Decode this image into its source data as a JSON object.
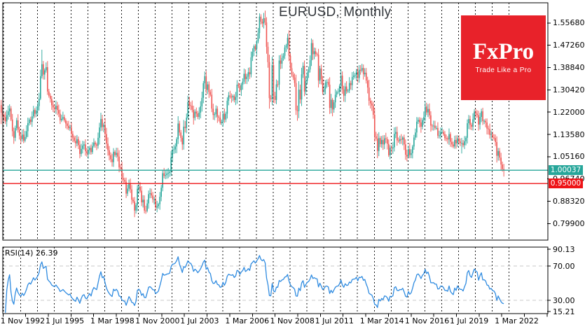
{
  "header": {
    "title": "EURUSD, Monthly"
  },
  "branding": {
    "name": "FxPro",
    "tagline": "Trade Like a Pro",
    "bg_color": "#e8222a",
    "text_color": "#ffffff"
  },
  "indicator": {
    "name": "RSI(14)",
    "value": "26.39",
    "line_color": "#2f8be0",
    "level_lines": [
      70,
      30
    ],
    "ticks": [
      {
        "text": "90.13",
        "value": 90.13
      },
      {
        "text": "70.00",
        "value": 70
      },
      {
        "text": "30.00",
        "value": 30
      },
      {
        "text": "15.21",
        "value": 15.21
      }
    ]
  },
  "price_axis": {
    "ticks": [
      {
        "text": "1.55680",
        "value": 1.5568
      },
      {
        "text": "1.47260",
        "value": 1.4726
      },
      {
        "text": "1.38840",
        "value": 1.3884
      },
      {
        "text": "1.30420",
        "value": 1.3042
      },
      {
        "text": "1.22000",
        "value": 1.22
      },
      {
        "text": "1.13580",
        "value": 1.1358
      },
      {
        "text": "1.05160",
        "value": 1.0516
      },
      {
        "text": "0.96740",
        "value": 0.9674
      },
      {
        "text": "0.88320",
        "value": 0.8832
      },
      {
        "text": "0.79900",
        "value": 0.799
      }
    ]
  },
  "time_axis": {
    "labels": [
      {
        "text": "1 Nov 1992",
        "month_index": 0
      },
      {
        "text": "1 Jul 1995",
        "month_index": 32
      },
      {
        "text": "1 Mar 1998",
        "month_index": 64
      },
      {
        "text": "1 Nov 2000",
        "month_index": 96
      },
      {
        "text": "1 Jul 2003",
        "month_index": 128
      },
      {
        "text": "1 Mar 2006",
        "month_index": 160
      },
      {
        "text": "1 Nov 2008",
        "month_index": 192
      },
      {
        "text": "1 Jul 2011",
        "month_index": 224
      },
      {
        "text": "1 Mar 2014",
        "month_index": 256
      },
      {
        "text": "1 Nov 2016",
        "month_index": 288
      },
      {
        "text": "1 Jul 2019",
        "month_index": 320
      },
      {
        "text": "1 Mar 2022",
        "month_index": 352
      }
    ]
  },
  "levels": {
    "current_price": {
      "label": "1.00037",
      "value": 1.00037,
      "color": "#26a69a"
    },
    "horizontal_line": {
      "label": "0.95000",
      "value": 0.95,
      "color": "#ee1417"
    }
  },
  "chart_data": [
    {
      "type": "candlestick",
      "title": "EURUSD, Monthly",
      "symbol": "EURUSD",
      "interval": "1M",
      "x_start": "1992-11",
      "x_end": "2022-09",
      "bull_color": "#26a69a",
      "bear_color": "#ef5350",
      "grid": "vertical-yearly-dashed",
      "y_visible_range": [
        0.736,
        1.633
      ],
      "first_open": 1.2465,
      "monthly_closes": [
        1.218,
        1.2095,
        1.201,
        1.185,
        1.209,
        1.223,
        1.234,
        1.192,
        1.148,
        1.123,
        1.16,
        1.189,
        1.154,
        1.131,
        1.118,
        1.135,
        1.112,
        1.126,
        1.148,
        1.178,
        1.192,
        1.183,
        1.204,
        1.228,
        1.214,
        1.226,
        1.243,
        1.271,
        1.356,
        1.401,
        1.362,
        1.378,
        1.39,
        1.298,
        1.282,
        1.27,
        1.246,
        1.238,
        1.231,
        1.244,
        1.228,
        1.214,
        1.189,
        1.195,
        1.201,
        1.189,
        1.177,
        1.168,
        1.159,
        1.163,
        1.138,
        1.124,
        1.111,
        1.102,
        1.118,
        1.095,
        1.062,
        1.081,
        1.094,
        1.098,
        1.072,
        1.064,
        1.076,
        1.085,
        1.069,
        1.092,
        1.105,
        1.098,
        1.093,
        1.123,
        1.162,
        1.194,
        1.164,
        1.172,
        1.137,
        1.101,
        1.076,
        1.057,
        1.042,
        1.031,
        1.07,
        1.058,
        1.066,
        1.052,
        1.011,
        1.007,
        0.971,
        0.964,
        0.957,
        0.912,
        0.931,
        0.952,
        0.928,
        0.889,
        0.883,
        0.848,
        0.868,
        0.93,
        0.938,
        0.923,
        0.879,
        0.889,
        0.848,
        0.847,
        0.875,
        0.91,
        0.914,
        0.905,
        0.89,
        0.89,
        0.859,
        0.865,
        0.872,
        0.9,
        0.934,
        0.989,
        0.979,
        0.982,
        0.988,
        0.99,
        0.995,
        1.049,
        1.077,
        1.079,
        1.09,
        1.118,
        1.177,
        1.143,
        1.123,
        1.098,
        1.165,
        1.16,
        1.199,
        1.258,
        1.246,
        1.244,
        1.229,
        1.198,
        1.222,
        1.215,
        1.202,
        1.218,
        1.242,
        1.274,
        1.329,
        1.356,
        1.304,
        1.325,
        1.296,
        1.286,
        1.233,
        1.209,
        1.212,
        1.233,
        1.203,
        1.199,
        1.179,
        1.183,
        1.214,
        1.192,
        1.214,
        1.263,
        1.283,
        1.278,
        1.276,
        1.281,
        1.266,
        1.277,
        1.324,
        1.32,
        1.303,
        1.323,
        1.335,
        1.365,
        1.345,
        1.354,
        1.371,
        1.363,
        1.427,
        1.448,
        1.469,
        1.459,
        1.487,
        1.519,
        1.581,
        1.562,
        1.555,
        1.575,
        1.559,
        1.467,
        1.409,
        1.273,
        1.269,
        1.398,
        1.281,
        1.266,
        1.325,
        1.324,
        1.415,
        1.403,
        1.425,
        1.433,
        1.464,
        1.472,
        1.501,
        1.433,
        1.386,
        1.362,
        1.351,
        1.33,
        1.227,
        1.224,
        1.305,
        1.268,
        1.363,
        1.395,
        1.298,
        1.338,
        1.369,
        1.381,
        1.416,
        1.481,
        1.439,
        1.45,
        1.44,
        1.437,
        1.339,
        1.385,
        1.344,
        1.296,
        1.308,
        1.332,
        1.334,
        1.324,
        1.236,
        1.267,
        1.23,
        1.257,
        1.286,
        1.296,
        1.298,
        1.319,
        1.358,
        1.306,
        1.282,
        1.317,
        1.299,
        1.301,
        1.33,
        1.322,
        1.353,
        1.358,
        1.359,
        1.374,
        1.349,
        1.38,
        1.377,
        1.387,
        1.363,
        1.369,
        1.339,
        1.313,
        1.263,
        1.253,
        1.245,
        1.21,
        1.129,
        1.12,
        1.073,
        1.122,
        1.099,
        1.115,
        1.098,
        1.121,
        1.118,
        1.1,
        1.057,
        1.086,
        1.083,
        1.087,
        1.138,
        1.145,
        1.113,
        1.111,
        1.118,
        1.116,
        1.124,
        1.098,
        1.059,
        1.052,
        1.08,
        1.058,
        1.065,
        1.09,
        1.124,
        1.143,
        1.184,
        1.191,
        1.181,
        1.165,
        1.19,
        1.201,
        1.241,
        1.219,
        1.232,
        1.208,
        1.169,
        1.168,
        1.169,
        1.16,
        1.16,
        1.131,
        1.132,
        1.145,
        1.145,
        1.137,
        1.122,
        1.121,
        1.117,
        1.137,
        1.108,
        1.098,
        1.09,
        1.115,
        1.102,
        1.121,
        1.109,
        1.103,
        1.103,
        1.095,
        1.11,
        1.123,
        1.178,
        1.194,
        1.172,
        1.165,
        1.193,
        1.222,
        1.214,
        1.209,
        1.173,
        1.202,
        1.223,
        1.186,
        1.187,
        1.181,
        1.158,
        1.156,
        1.134,
        1.137,
        1.124,
        1.122,
        1.107,
        1.055,
        1.073,
        1.048,
        1.022,
        1.005,
        1.00037
      ],
      "wick_overrides": {
        "0": {
          "high": 1.266,
          "low": 1.175
        },
        "29": {
          "high": 1.456
        },
        "71": {
          "high": 1.218
        },
        "95": {
          "low": 0.823
        },
        "188": {
          "high": 1.6038
        },
        "191": {
          "low": 1.233
        },
        "211": {
          "low": 1.1876
        },
        "222": {
          "high": 1.494
        },
        "236": {
          "low": 1.2042
        },
        "268": {
          "low": 1.0458
        },
        "289": {
          "low": 1.0341
        },
        "303": {
          "high": 1.2555
        },
        "328": {
          "low": 1.0636
        },
        "337": {
          "high": 1.231
        },
        "358": {
          "low": 0.9765
        }
      }
    },
    {
      "type": "line",
      "title": "RSI(14)",
      "period": 14,
      "current_value": 26.39,
      "observed_range": [
        15.21,
        90.13
      ],
      "level_lines": [
        70,
        30
      ],
      "derived_from": "Wilder RSI(14) of monthly_closes above"
    }
  ]
}
